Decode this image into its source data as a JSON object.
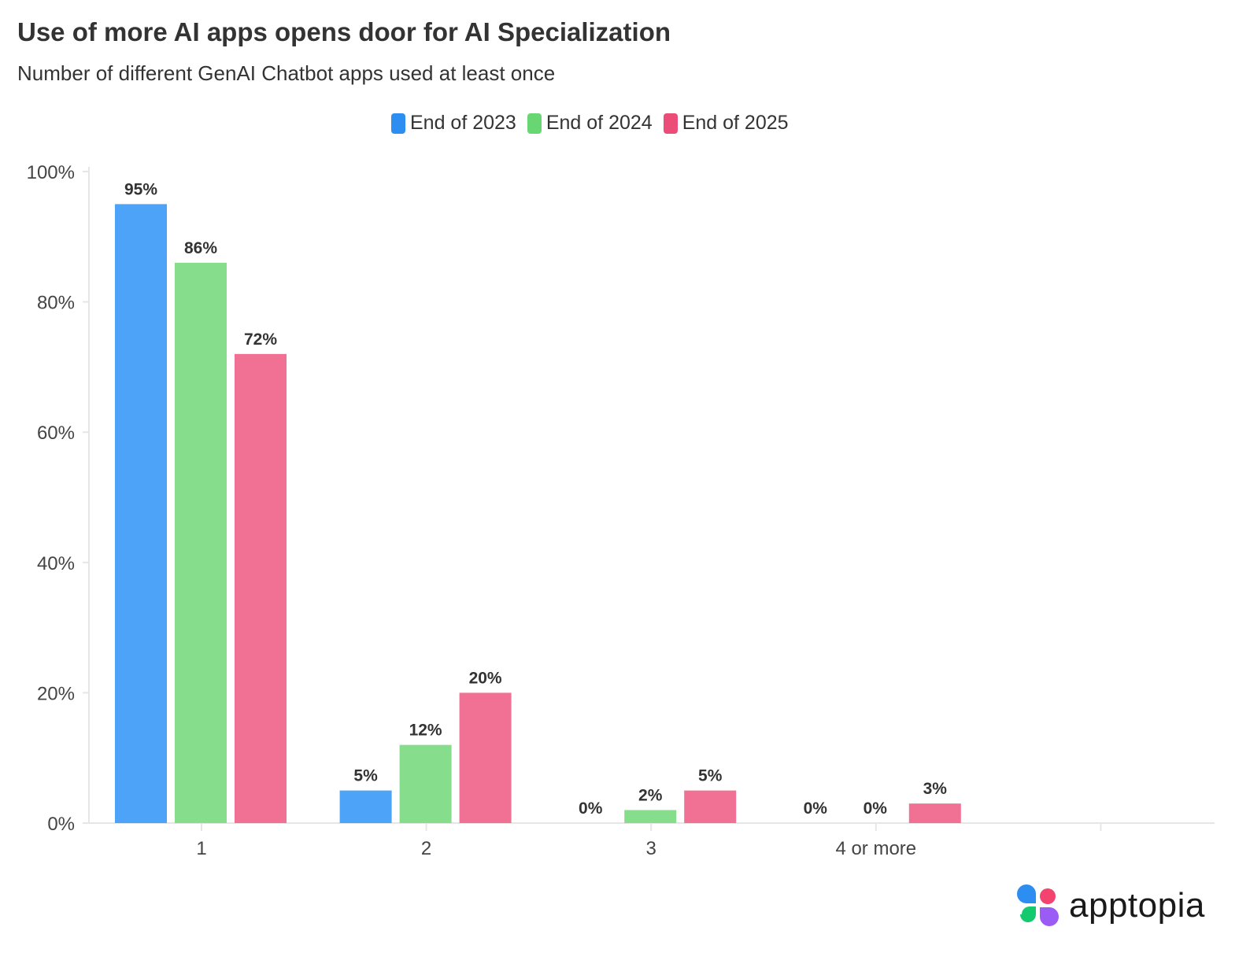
{
  "chart_data": {
    "type": "bar",
    "title": "Use of more AI apps opens door for AI Specialization",
    "subtitle": "Number of different GenAI Chatbot apps used at least once",
    "categories": [
      "1",
      "2",
      "3",
      "4 or more"
    ],
    "series": [
      {
        "name": "End of 2023",
        "values": [
          95,
          5,
          0,
          0
        ],
        "color": "#4DA3F7",
        "legend_color": "#2B8EF0"
      },
      {
        "name": "End of 2024",
        "values": [
          86,
          12,
          2,
          0
        ],
        "color": "#86DE8D",
        "legend_color": "#68D672"
      },
      {
        "name": "End of 2025",
        "values": [
          72,
          20,
          5,
          3
        ],
        "color": "#F07193",
        "legend_color": "#EC4C78"
      }
    ],
    "ylim": [
      0,
      100
    ],
    "yticks": [
      "0%",
      "20%",
      "40%",
      "60%",
      "80%",
      "100%"
    ],
    "xlabel": "",
    "ylabel": "",
    "grid": false,
    "legend": "top-center",
    "data_labels": true
  },
  "brand": {
    "name": "apptopia"
  }
}
